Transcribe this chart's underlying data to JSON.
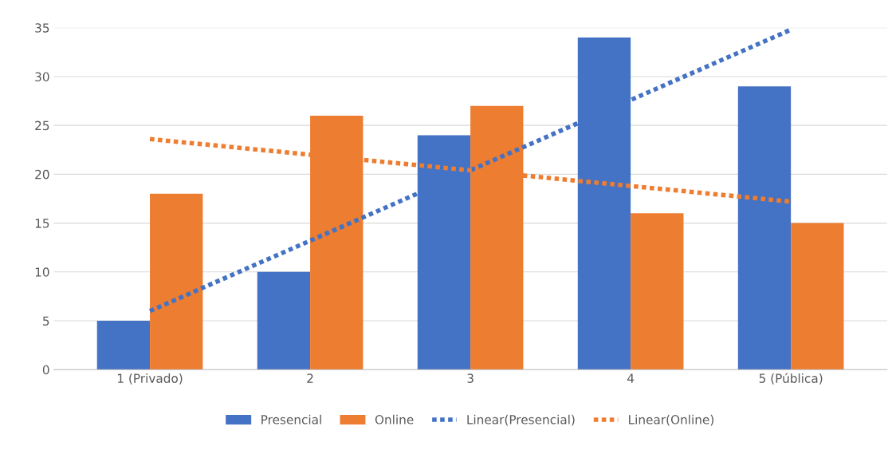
{
  "chart_data": {
    "type": "bar",
    "categories": [
      "1 (Privado)",
      "2",
      "3",
      "4",
      "5 (Pública)"
    ],
    "series": [
      {
        "name": "Presencial",
        "color": "#4472c4",
        "values": [
          5,
          10,
          24,
          34,
          29
        ]
      },
      {
        "name": "Online",
        "color": "#ed7d31",
        "values": [
          18,
          26,
          27,
          16,
          15
        ]
      },
      {
        "name": "Linear(Presencial)",
        "type": "line",
        "line_style": "dotted",
        "color": "#4472c4",
        "values": [
          6.0,
          13.2,
          20.4,
          27.6,
          34.8
        ]
      },
      {
        "name": "Linear(Online)",
        "type": "line",
        "line_style": "dotted",
        "color": "#ed7d31",
        "values": [
          23.6,
          22.0,
          20.4,
          18.8,
          17.2
        ]
      }
    ],
    "ylim": [
      0,
      35
    ],
    "yticks": [
      0,
      5,
      10,
      15,
      20,
      25,
      30,
      35
    ],
    "grid": "y",
    "legend": "bottom",
    "marker": "none"
  }
}
